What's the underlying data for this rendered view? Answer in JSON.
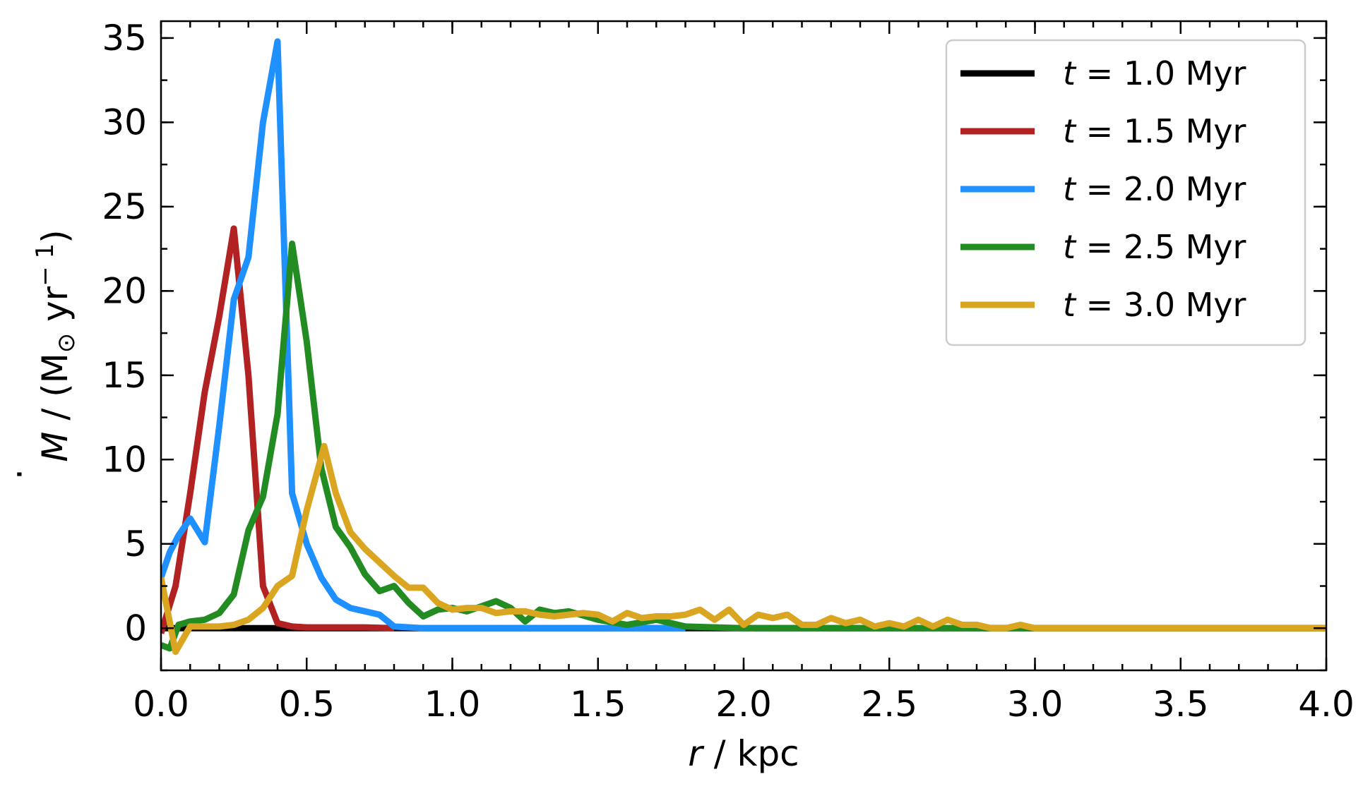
{
  "chart_data": {
    "type": "line",
    "xlabel_var": "r",
    "xlabel_unit": " / kpc",
    "ylabel_var": "M",
    "ylabel_rest": " / (M",
    "ylabel_sub": "⊙",
    "ylabel_tail": " yr",
    "ylabel_sup": "− 1",
    "ylabel_close": ")",
    "xlim": [
      0,
      4.0
    ],
    "ylim": [
      -2.5,
      36
    ],
    "xticks": [
      "0.0",
      "0.5",
      "1.0",
      "1.5",
      "2.0",
      "2.5",
      "3.0",
      "3.5",
      "4.0"
    ],
    "yticks": [
      "0",
      "5",
      "10",
      "15",
      "20",
      "25",
      "30",
      "35"
    ],
    "legend_position": "top-right",
    "series": [
      {
        "name": "t = 1.0 Myr",
        "name_var": "t",
        "name_rest": " = 1.0 Myr",
        "color": "#000000",
        "x": [
          0,
          0.05,
          0.1,
          0.15,
          0.2,
          0.25,
          0.3,
          0.35,
          0.4,
          0.45,
          0.5,
          1.0,
          2.0,
          3.0,
          4.0
        ],
        "y": [
          0,
          0,
          0,
          0,
          0,
          0,
          0,
          0,
          0,
          0,
          0,
          0,
          0,
          0,
          0
        ]
      },
      {
        "name": "t = 1.5 Myr",
        "name_var": "t",
        "name_rest": " = 1.5 Myr",
        "color": "#b22222",
        "x": [
          0,
          0.05,
          0.1,
          0.15,
          0.2,
          0.25,
          0.3,
          0.35,
          0.4,
          0.45,
          0.5,
          0.6,
          0.7,
          0.8
        ],
        "y": [
          -0.3,
          2.5,
          8,
          14,
          18.5,
          23.7,
          15,
          2.5,
          0.3,
          0.1,
          0.05,
          0.05,
          0.05,
          0
        ]
      },
      {
        "name": "t = 2.0 Myr",
        "name_var": "t",
        "name_rest": " = 2.0 Myr",
        "color": "#1e90ff",
        "x": [
          0,
          0.03,
          0.06,
          0.1,
          0.15,
          0.2,
          0.25,
          0.3,
          0.35,
          0.4,
          0.45,
          0.5,
          0.55,
          0.6,
          0.65,
          0.7,
          0.75,
          0.8,
          0.9,
          1.0,
          1.2,
          1.4,
          1.6,
          1.7,
          1.8
        ],
        "y": [
          3,
          4.5,
          5.5,
          6.5,
          5.1,
          12,
          19.5,
          22,
          30,
          34.8,
          8,
          5,
          3,
          1.7,
          1.2,
          1.0,
          0.8,
          0.1,
          0,
          0,
          0,
          0,
          0,
          0,
          0
        ]
      },
      {
        "name": "t = 2.5 Myr",
        "name_var": "t",
        "name_rest": " = 2.5 Myr",
        "color": "#228b22",
        "x": [
          0,
          0.03,
          0.06,
          0.1,
          0.15,
          0.2,
          0.25,
          0.3,
          0.35,
          0.4,
          0.45,
          0.5,
          0.55,
          0.6,
          0.65,
          0.7,
          0.75,
          0.8,
          0.85,
          0.9,
          0.95,
          1.0,
          1.05,
          1.1,
          1.15,
          1.2,
          1.25,
          1.3,
          1.35,
          1.4,
          1.5,
          1.6,
          1.7,
          1.8,
          2.0,
          2.2,
          2.4,
          2.6,
          2.8,
          3.0,
          3.5,
          4.0
        ],
        "y": [
          -1.0,
          -1.2,
          0.2,
          0.4,
          0.5,
          0.9,
          2.0,
          5.8,
          7.8,
          12.7,
          22.8,
          17,
          9.5,
          6.0,
          4.8,
          3.2,
          2.2,
          2.5,
          1.5,
          0.7,
          1.1,
          1.2,
          1.0,
          1.3,
          1.6,
          1.2,
          0.4,
          1.1,
          0.9,
          1.0,
          0.5,
          0.2,
          0.5,
          0.1,
          0,
          0,
          0,
          0,
          0,
          0,
          0,
          0
        ]
      },
      {
        "name": "t = 3.0 Myr",
        "name_var": "t",
        "name_rest": " = 3.0 Myr",
        "color": "#daa520",
        "x": [
          0,
          0.05,
          0.1,
          0.15,
          0.2,
          0.25,
          0.3,
          0.35,
          0.4,
          0.45,
          0.5,
          0.56,
          0.6,
          0.65,
          0.7,
          0.75,
          0.8,
          0.85,
          0.9,
          0.95,
          1.0,
          1.05,
          1.1,
          1.15,
          1.2,
          1.25,
          1.3,
          1.35,
          1.4,
          1.45,
          1.5,
          1.55,
          1.6,
          1.65,
          1.7,
          1.75,
          1.8,
          1.85,
          1.9,
          1.95,
          2.0,
          2.05,
          2.1,
          2.15,
          2.2,
          2.25,
          2.3,
          2.35,
          2.4,
          2.45,
          2.5,
          2.55,
          2.6,
          2.65,
          2.7,
          2.75,
          2.8,
          2.85,
          2.9,
          2.95,
          3.0,
          3.05,
          3.5,
          4.0
        ],
        "y": [
          3.0,
          -1.4,
          0.1,
          0.1,
          0.1,
          0.2,
          0.5,
          1.2,
          2.5,
          3.1,
          7.0,
          10.8,
          8.0,
          5.7,
          4.7,
          3.9,
          3.1,
          2.4,
          2.4,
          1.5,
          1.1,
          1.2,
          1.2,
          0.9,
          1.0,
          1.0,
          0.8,
          0.7,
          0.8,
          0.9,
          0.8,
          0.4,
          0.9,
          0.6,
          0.7,
          0.7,
          0.8,
          1.1,
          0.5,
          1.1,
          0.2,
          0.8,
          0.6,
          0.8,
          0.2,
          0.2,
          0.6,
          0.3,
          0.5,
          0.1,
          0.3,
          0.1,
          0.5,
          0.1,
          0.5,
          0.2,
          0.2,
          0,
          0,
          0.2,
          0,
          0,
          0,
          0
        ]
      }
    ]
  }
}
